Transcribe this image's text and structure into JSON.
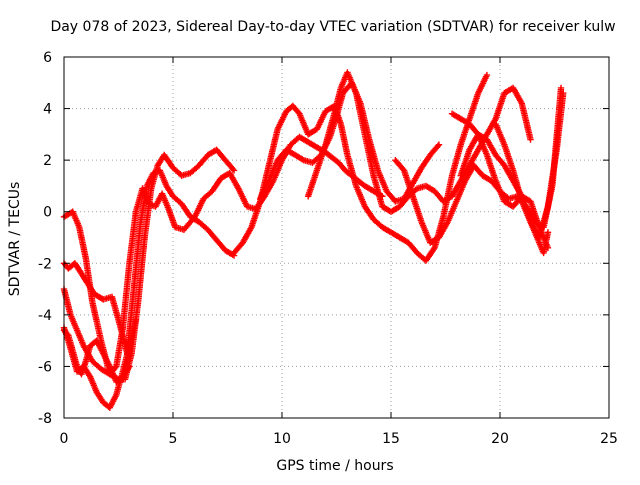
{
  "chart_data": {
    "type": "scatter",
    "title": "Day 078 of 2023, Sidereal Day-to-day VTEC variation (SDTVAR) for receiver kulw",
    "xlabel": "GPS time / hours",
    "ylabel": "SDTVAR / TECUs",
    "xlim": [
      0,
      25
    ],
    "ylim": [
      -8,
      6
    ],
    "xticks": [
      0,
      5,
      10,
      15,
      20,
      25
    ],
    "yticks": [
      -8,
      -6,
      -4,
      -2,
      0,
      2,
      4,
      6
    ],
    "grid": true,
    "marker": "+",
    "colors": {
      "series": "#ff0000",
      "grid": "#a0a0a0",
      "axes": "#000000"
    },
    "series": [
      {
        "name": "track-1",
        "x": [
          0.0,
          0.3,
          0.6,
          0.9,
          1.3,
          1.7,
          2.1,
          2.4,
          2.7,
          3.0,
          3.3,
          3.6,
          3.9,
          4.2,
          4.5,
          4.8,
          5.1,
          5.5,
          6.0,
          6.4,
          6.8,
          7.2,
          7.6,
          8.0,
          8.4,
          8.8,
          9.2,
          9.6,
          10.0,
          10.4,
          10.8,
          11.2,
          11.6,
          12.0,
          12.3,
          12.6,
          12.9,
          13.2,
          13.5,
          13.8,
          14.2,
          14.6
        ],
        "y": [
          -3.0,
          -4.0,
          -4.6,
          -5.2,
          -5.8,
          -6.1,
          -6.3,
          -6.0,
          -4.5,
          -2.0,
          0.0,
          0.9,
          0.3,
          0.2,
          0.7,
          0.1,
          -0.6,
          -0.7,
          -0.2,
          0.5,
          0.8,
          1.3,
          1.5,
          0.9,
          0.2,
          0.1,
          0.6,
          1.2,
          2.0,
          2.6,
          2.9,
          2.7,
          2.5,
          2.3,
          2.1,
          1.9,
          1.6,
          1.4,
          1.2,
          1.0,
          0.8,
          0.6
        ]
      },
      {
        "name": "track-2",
        "x": [
          0.0,
          0.2,
          0.5,
          0.8,
          1.1,
          1.4,
          1.8,
          2.2,
          2.6,
          2.9,
          3.2,
          3.5,
          3.8,
          4.1,
          4.4,
          4.7,
          5.0,
          5.4,
          5.8,
          6.2,
          6.6,
          7.0,
          7.4,
          7.8
        ],
        "y": [
          -2.0,
          -2.2,
          -2.0,
          -2.4,
          -2.8,
          -3.2,
          -3.4,
          -3.3,
          -4.5,
          -5.5,
          -3.0,
          -0.5,
          1.0,
          1.5,
          1.6,
          1.0,
          0.6,
          0.3,
          -0.2,
          -0.4,
          -0.7,
          -1.1,
          -1.5,
          -1.7
        ]
      },
      {
        "name": "track-3",
        "x": [
          0.0,
          0.2,
          0.4,
          0.7,
          1.0,
          1.3,
          1.7,
          2.1,
          2.5,
          2.8,
          3.1,
          3.4,
          3.7,
          4.0,
          4.3,
          4.6,
          5.0,
          5.4,
          5.8,
          6.2,
          6.6,
          7.0,
          7.4,
          7.8
        ],
        "y": [
          -0.2,
          -0.1,
          0.0,
          -0.6,
          -1.8,
          -3.5,
          -5.0,
          -6.3,
          -6.5,
          -6.5,
          -5.5,
          -3.5,
          -1.0,
          0.9,
          1.8,
          2.2,
          1.7,
          1.4,
          1.5,
          1.8,
          2.2,
          2.4,
          2.0,
          1.6
        ]
      },
      {
        "name": "track-4",
        "x": [
          0.0,
          0.2,
          0.4,
          0.6,
          0.9,
          1.2,
          1.5,
          1.8,
          2.1,
          2.4,
          2.7,
          3.0,
          3.3
        ],
        "y": [
          -4.5,
          -5.0,
          -5.6,
          -6.2,
          -6.0,
          -6.4,
          -7.0,
          -7.4,
          -7.6,
          -7.1,
          -6.2,
          -5.2,
          -4.2
        ]
      },
      {
        "name": "track-5",
        "x": [
          0.0,
          0.2,
          0.4,
          0.6,
          0.8,
          1.0,
          1.2,
          1.5,
          1.8,
          2.1,
          2.4,
          2.7,
          3.0
        ],
        "y": [
          -4.6,
          -4.8,
          -5.4,
          -6.0,
          -6.3,
          -5.8,
          -5.2,
          -5.0,
          -5.5,
          -6.0,
          -6.6,
          -6.4,
          -6.0
        ]
      },
      {
        "name": "track-6",
        "x": [
          7.8,
          8.2,
          8.6,
          9.0,
          9.4,
          9.8,
          10.2,
          10.5,
          10.8,
          11.2,
          11.6,
          12.0,
          12.4,
          12.7,
          13.0,
          13.4,
          13.8,
          14.2,
          14.6,
          15.0,
          15.4,
          15.8,
          16.2,
          16.6,
          17.0,
          17.4,
          17.8,
          18.2,
          18.6,
          19.0,
          19.4
        ],
        "y": [
          -1.6,
          -1.2,
          -0.6,
          0.4,
          1.8,
          3.2,
          3.9,
          4.1,
          3.8,
          3.0,
          3.2,
          3.9,
          4.1,
          3.4,
          2.2,
          1.0,
          0.2,
          -0.3,
          -0.6,
          -0.8,
          -1.0,
          -1.2,
          -1.6,
          -1.9,
          -1.4,
          -0.2,
          1.4,
          2.6,
          3.6,
          4.6,
          5.3
        ]
      },
      {
        "name": "track-7",
        "x": [
          9.0,
          9.4,
          9.8,
          10.2,
          10.6,
          11.0,
          11.4,
          11.8,
          12.2,
          12.5,
          12.8,
          13.2,
          13.6,
          14.0,
          14.4,
          14.8,
          15.2,
          15.6,
          16.0,
          16.4,
          16.8,
          17.2
        ],
        "y": [
          0.5,
          1.2,
          2.0,
          2.4,
          2.2,
          2.0,
          1.9,
          2.2,
          2.9,
          3.7,
          4.6,
          5.0,
          4.2,
          2.8,
          1.6,
          0.8,
          0.4,
          0.5,
          1.1,
          1.7,
          2.2,
          2.6
        ]
      },
      {
        "name": "track-8",
        "x": [
          11.2,
          11.6,
          12.0,
          12.4,
          12.7,
          13.0,
          13.4,
          13.8,
          14.2,
          14.6,
          15.0,
          15.4,
          15.8,
          16.2,
          16.6,
          17.0,
          17.4,
          17.8,
          18.2,
          18.6,
          19.0,
          19.4,
          19.8,
          20.2,
          20.6,
          21.0,
          21.4
        ],
        "y": [
          0.6,
          1.6,
          2.6,
          3.8,
          4.8,
          5.4,
          4.6,
          3.0,
          1.4,
          0.2,
          0.0,
          0.2,
          0.6,
          0.9,
          1.0,
          0.8,
          0.4,
          0.6,
          1.2,
          1.8,
          2.4,
          3.0,
          3.6,
          4.6,
          4.8,
          4.2,
          2.8
        ]
      },
      {
        "name": "track-9",
        "x": [
          15.2,
          15.6,
          16.0,
          16.4,
          16.8,
          17.2,
          17.6,
          18.0,
          18.4,
          18.8,
          19.2,
          19.6,
          20.0,
          20.4,
          20.8,
          21.2,
          21.6,
          22.0,
          22.4,
          22.8
        ],
        "y": [
          2.0,
          1.6,
          0.6,
          -0.4,
          -1.2,
          -1.0,
          -0.4,
          0.4,
          1.2,
          1.8,
          1.4,
          1.2,
          0.8,
          0.5,
          0.6,
          0.2,
          -0.4,
          -0.6,
          1.0,
          4.8
        ]
      },
      {
        "name": "track-10",
        "x": [
          17.8,
          18.2,
          18.6,
          19.0,
          19.4,
          19.8,
          20.2,
          20.6,
          21.0,
          21.4,
          21.8,
          22.2
        ],
        "y": [
          3.8,
          3.6,
          3.4,
          3.0,
          2.2,
          1.2,
          0.4,
          0.2,
          0.6,
          0.4,
          -0.6,
          -1.4
        ]
      },
      {
        "name": "track-11",
        "x": [
          18.2,
          18.6,
          19.0,
          19.4,
          19.8,
          20.2,
          20.6,
          21.0,
          21.4,
          21.8,
          22.2,
          22.6,
          22.9
        ],
        "y": [
          1.4,
          2.4,
          3.0,
          2.8,
          2.2,
          1.8,
          1.2,
          0.6,
          -0.4,
          -1.0,
          0.2,
          2.4,
          4.6
        ]
      },
      {
        "name": "track-12",
        "x": [
          19.8,
          20.2,
          20.6,
          21.0,
          21.4,
          21.8,
          22.0,
          22.2
        ],
        "y": [
          3.4,
          2.6,
          1.6,
          0.4,
          -0.4,
          -1.2,
          -1.6,
          -0.8
        ]
      }
    ]
  }
}
